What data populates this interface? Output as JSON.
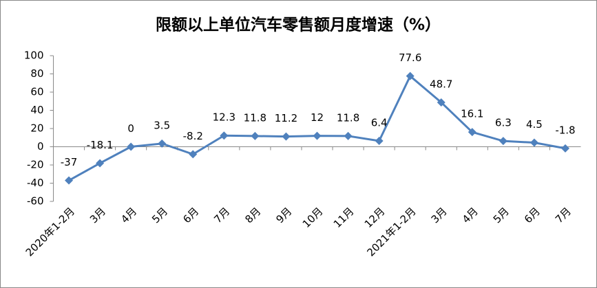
{
  "chart_data": {
    "type": "line",
    "title": "限额以上单位汽车零售额月度增速（%）",
    "categories": [
      "2020年1-2月",
      "3月",
      "4月",
      "5月",
      "6月",
      "7月",
      "8月",
      "9月",
      "10月",
      "11月",
      "12月",
      "2021年1-2月",
      "3月",
      "4月",
      "5月",
      "6月",
      "7月"
    ],
    "values": [
      -37,
      -18.1,
      0,
      3.5,
      -8.2,
      12.3,
      11.8,
      11.2,
      12,
      11.8,
      6.4,
      77.6,
      48.7,
      16.1,
      6.3,
      4.5,
      -1.8
    ],
    "color": "#4f81bd",
    "ylim": [
      -60,
      100
    ],
    "yticks": [
      -60,
      -40,
      -20,
      0,
      20,
      40,
      60,
      80,
      100
    ],
    "grid": false
  }
}
